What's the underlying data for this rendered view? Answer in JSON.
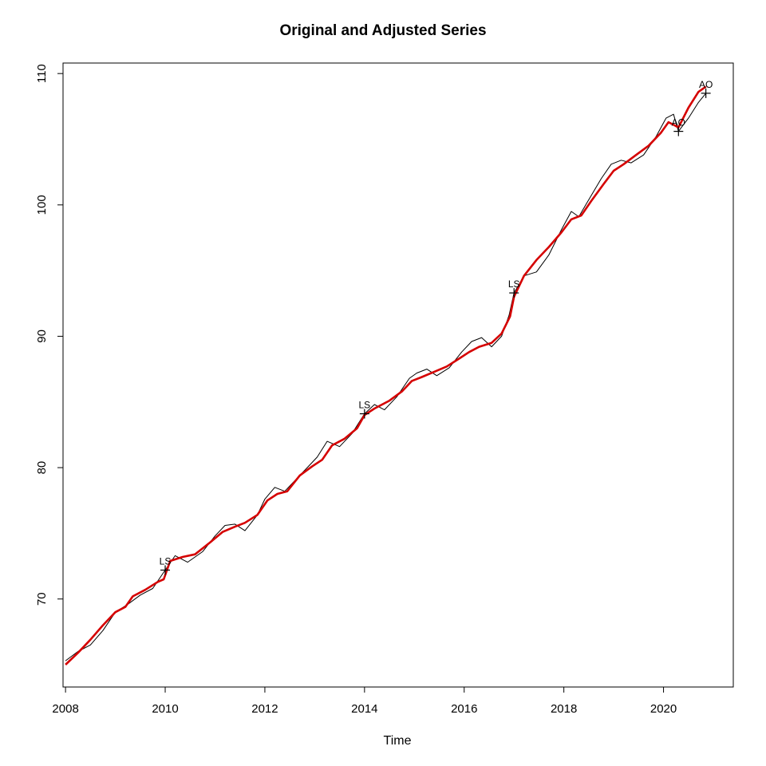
{
  "chart_data": {
    "type": "line",
    "title": "Original and Adjusted Series",
    "xlabel": "Time",
    "ylabel": "",
    "xlim": [
      2007.95,
      2021.4
    ],
    "ylim": [
      63.3,
      110.8
    ],
    "x_ticks": [
      2008,
      2010,
      2012,
      2014,
      2016,
      2018,
      2020
    ],
    "y_ticks": [
      70,
      80,
      90,
      100,
      110
    ],
    "grid": false,
    "legend": "none",
    "series": [
      {
        "color": "#000000",
        "points": [
          [
            2008.0,
            65.3
          ],
          [
            2008.25,
            66.0
          ],
          [
            2008.5,
            66.5
          ],
          [
            2008.75,
            67.6
          ],
          [
            2009.0,
            69.0
          ],
          [
            2009.25,
            69.6
          ],
          [
            2009.5,
            70.3
          ],
          [
            2009.75,
            70.8
          ],
          [
            2010.0,
            72.2
          ],
          [
            2010.2,
            73.3
          ],
          [
            2010.45,
            72.8
          ],
          [
            2010.75,
            73.6
          ],
          [
            2011.0,
            74.8
          ],
          [
            2011.2,
            75.6
          ],
          [
            2011.4,
            75.7
          ],
          [
            2011.6,
            75.2
          ],
          [
            2011.85,
            76.4
          ],
          [
            2012.0,
            77.6
          ],
          [
            2012.2,
            78.5
          ],
          [
            2012.4,
            78.2
          ],
          [
            2012.6,
            79.0
          ],
          [
            2012.85,
            80.0
          ],
          [
            2013.05,
            80.8
          ],
          [
            2013.25,
            82.0
          ],
          [
            2013.5,
            81.6
          ],
          [
            2013.75,
            82.6
          ],
          [
            2014.0,
            84.1
          ],
          [
            2014.2,
            84.8
          ],
          [
            2014.4,
            84.4
          ],
          [
            2014.65,
            85.4
          ],
          [
            2014.9,
            86.8
          ],
          [
            2015.05,
            87.2
          ],
          [
            2015.25,
            87.5
          ],
          [
            2015.45,
            87.0
          ],
          [
            2015.7,
            87.6
          ],
          [
            2015.95,
            88.8
          ],
          [
            2016.15,
            89.6
          ],
          [
            2016.35,
            89.9
          ],
          [
            2016.55,
            89.2
          ],
          [
            2016.75,
            90.0
          ],
          [
            2016.9,
            91.6
          ],
          [
            2017.0,
            93.3
          ],
          [
            2017.2,
            94.6
          ],
          [
            2017.45,
            94.9
          ],
          [
            2017.7,
            96.2
          ],
          [
            2017.95,
            98.1
          ],
          [
            2018.15,
            99.5
          ],
          [
            2018.3,
            99.1
          ],
          [
            2018.5,
            100.4
          ],
          [
            2018.75,
            102.0
          ],
          [
            2018.95,
            103.1
          ],
          [
            2019.15,
            103.4
          ],
          [
            2019.35,
            103.2
          ],
          [
            2019.6,
            103.8
          ],
          [
            2019.85,
            105.2
          ],
          [
            2020.05,
            106.6
          ],
          [
            2020.2,
            106.9
          ],
          [
            2020.3,
            105.6
          ],
          [
            2020.5,
            106.6
          ],
          [
            2020.7,
            107.8
          ],
          [
            2020.85,
            108.5
          ]
        ]
      },
      {
        "color": "#d50000",
        "points": [
          [
            2008.0,
            65.0
          ],
          [
            2008.25,
            65.9
          ],
          [
            2008.5,
            66.9
          ],
          [
            2008.75,
            68.0
          ],
          [
            2009.0,
            69.0
          ],
          [
            2009.2,
            69.4
          ],
          [
            2009.35,
            70.2
          ],
          [
            2009.6,
            70.7
          ],
          [
            2009.85,
            71.3
          ],
          [
            2009.97,
            71.5
          ],
          [
            2010.1,
            72.9
          ],
          [
            2010.35,
            73.2
          ],
          [
            2010.6,
            73.4
          ],
          [
            2010.9,
            74.3
          ],
          [
            2011.15,
            75.1
          ],
          [
            2011.4,
            75.5
          ],
          [
            2011.6,
            75.8
          ],
          [
            2011.85,
            76.4
          ],
          [
            2012.05,
            77.5
          ],
          [
            2012.25,
            78.0
          ],
          [
            2012.45,
            78.2
          ],
          [
            2012.7,
            79.4
          ],
          [
            2012.95,
            80.1
          ],
          [
            2013.15,
            80.6
          ],
          [
            2013.35,
            81.7
          ],
          [
            2013.6,
            82.2
          ],
          [
            2013.85,
            83.0
          ],
          [
            2014.0,
            84.0
          ],
          [
            2014.2,
            84.5
          ],
          [
            2014.5,
            85.1
          ],
          [
            2014.75,
            85.8
          ],
          [
            2014.95,
            86.6
          ],
          [
            2015.15,
            86.9
          ],
          [
            2015.4,
            87.3
          ],
          [
            2015.65,
            87.7
          ],
          [
            2015.9,
            88.3
          ],
          [
            2016.1,
            88.8
          ],
          [
            2016.3,
            89.2
          ],
          [
            2016.55,
            89.5
          ],
          [
            2016.75,
            90.2
          ],
          [
            2016.92,
            91.5
          ],
          [
            2017.0,
            93.0
          ],
          [
            2017.2,
            94.6
          ],
          [
            2017.45,
            95.8
          ],
          [
            2017.7,
            96.8
          ],
          [
            2017.95,
            97.9
          ],
          [
            2018.15,
            98.9
          ],
          [
            2018.35,
            99.2
          ],
          [
            2018.55,
            100.3
          ],
          [
            2018.8,
            101.6
          ],
          [
            2019.0,
            102.6
          ],
          [
            2019.2,
            103.1
          ],
          [
            2019.45,
            103.8
          ],
          [
            2019.7,
            104.5
          ],
          [
            2019.95,
            105.5
          ],
          [
            2020.1,
            106.3
          ],
          [
            2020.2,
            106.1
          ],
          [
            2020.3,
            105.9
          ],
          [
            2020.5,
            107.4
          ],
          [
            2020.7,
            108.6
          ],
          [
            2020.85,
            109.0
          ]
        ]
      }
    ],
    "annotations": [
      {
        "label": "LS",
        "x": 2010.0,
        "y": 72.2
      },
      {
        "label": "LS",
        "x": 2014.0,
        "y": 84.1
      },
      {
        "label": "LS",
        "x": 2017.0,
        "y": 93.3
      },
      {
        "label": "AO",
        "x": 2020.3,
        "y": 105.6
      },
      {
        "label": "AO",
        "x": 2020.85,
        "y": 108.5
      }
    ]
  }
}
